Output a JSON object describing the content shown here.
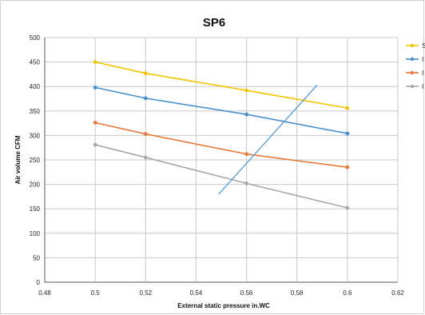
{
  "chart_data": {
    "type": "line",
    "title": "SP6",
    "xlabel": "External static pressure  in.WC",
    "ylabel": "Air volume  CFM",
    "xlim": [
      0.48,
      0.62
    ],
    "ylim": [
      0,
      500
    ],
    "x_ticks": [
      "0.48",
      "0.5",
      "0.52",
      "0.54",
      "0.56",
      "0.58",
      "0.6",
      "0.62"
    ],
    "y_ticks": [
      "0",
      "50",
      "100",
      "150",
      "200",
      "250",
      "300",
      "350",
      "400",
      "450",
      "500"
    ],
    "grid": true,
    "legend_position": "right",
    "x": [
      0.5,
      0.52,
      0.56,
      0.6
    ],
    "series": [
      {
        "name": "S",
        "color": "#f5c400",
        "values": [
          450,
          427,
          392,
          356
        ]
      },
      {
        "name": "I",
        "color": "#4a90d0",
        "values": [
          398,
          376,
          343,
          304
        ]
      },
      {
        "name": "I",
        "color": "#ea7a3a",
        "values": [
          326,
          303,
          262,
          235
        ]
      },
      {
        "name": "I",
        "color": "#a8a8a8",
        "values": [
          281,
          255,
          202,
          152
        ]
      }
    ],
    "system_curve": {
      "color": "#5a9fd8",
      "points": [
        [
          0.549,
          180
        ],
        [
          0.588,
          403
        ]
      ]
    }
  }
}
